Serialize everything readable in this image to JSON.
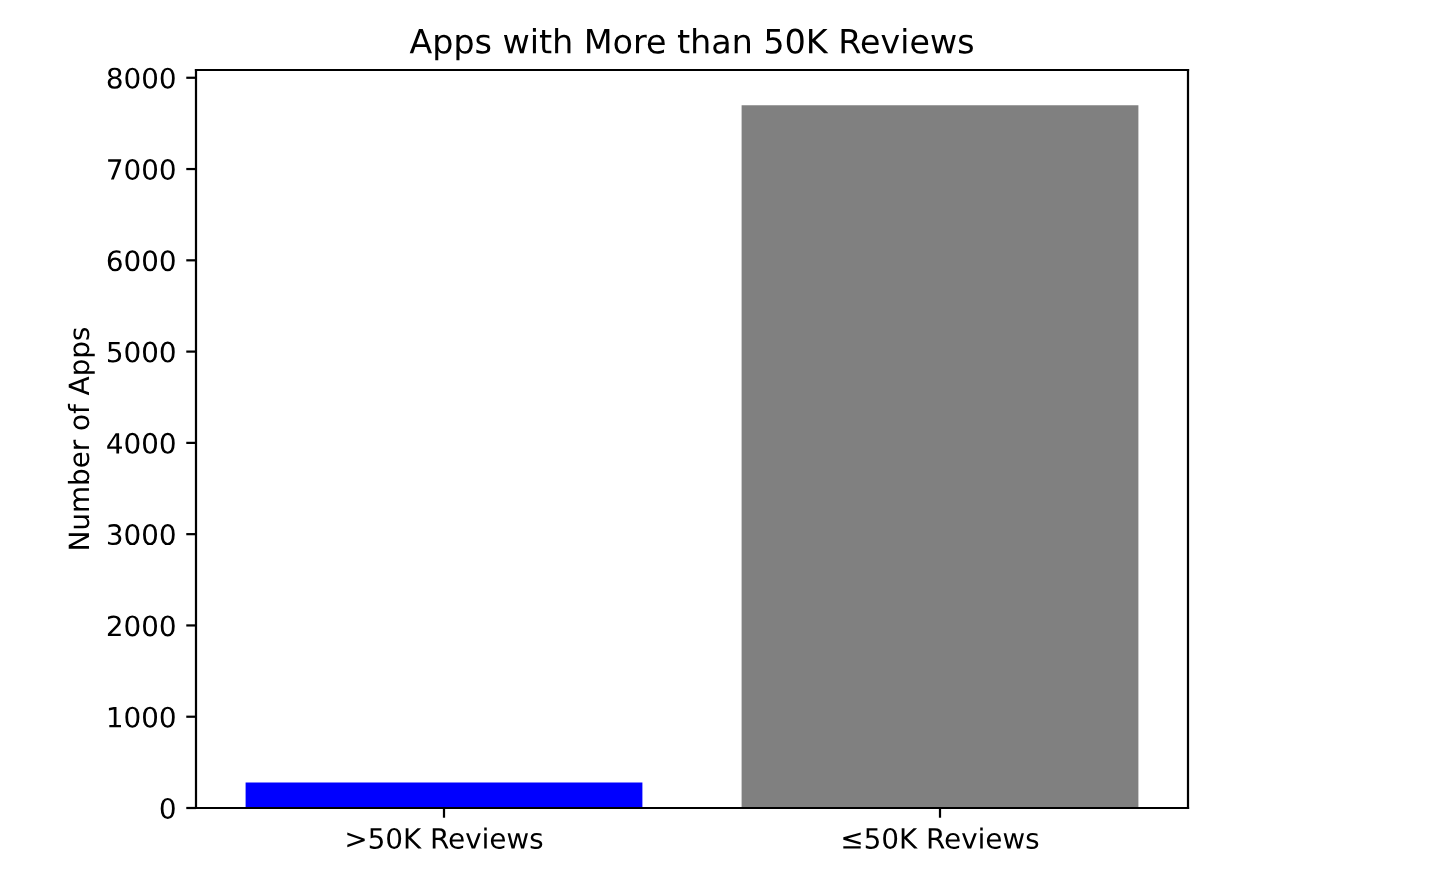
{
  "chart_data": {
    "type": "bar",
    "title": "Apps with More than 50K Reviews",
    "ylabel": "Number of Apps",
    "categories": [
      ">50K Reviews",
      "≤50K Reviews"
    ],
    "series": [
      {
        "values": [
          280,
          7700
        ],
        "colors": [
          "#0000ff",
          "#808080"
        ]
      }
    ],
    "ylim": [
      0,
      8085
    ],
    "yticks": [
      0,
      1000,
      2000,
      3000,
      4000,
      5000,
      6000,
      7000,
      8000
    ]
  }
}
